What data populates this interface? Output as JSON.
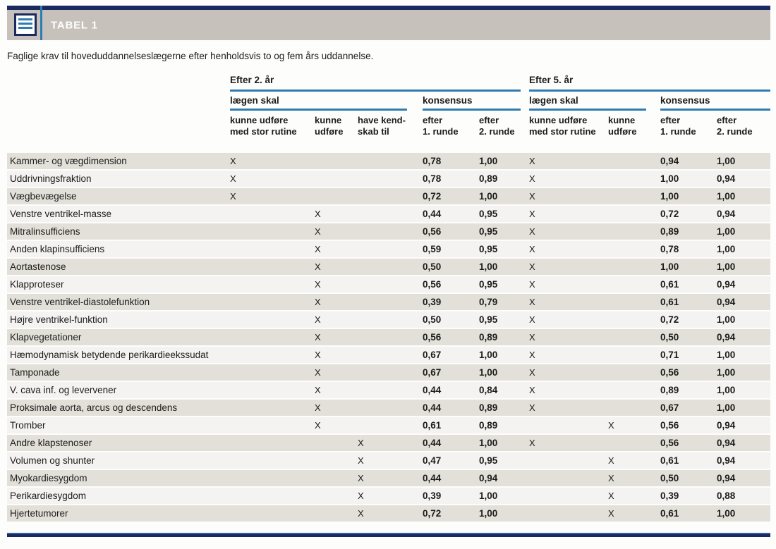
{
  "header": {
    "table_label": "TABEL 1",
    "caption": "Faglige krav til hoveduddannelseslægerne efter henholdsvis to og fem års uddannelse."
  },
  "colors": {
    "navy": "#1b2a5e",
    "blue_line": "#2e7cb2",
    "title_bar_gray": "#c6c2bb",
    "row_dark": "#e3e0da",
    "row_light": "#f4f3f1"
  },
  "table": {
    "sections": [
      {
        "title": "Efter 2. år",
        "groups": [
          "lægen skal",
          "konsensus"
        ],
        "columns": [
          "kunne udføre\nmed stor rutine",
          "kunne\nudføre",
          "have kend-\nskab til",
          "efter\n1. runde",
          "efter\n2. runde"
        ]
      },
      {
        "title": "Efter 5. år",
        "groups": [
          "lægen skal",
          "konsensus"
        ],
        "columns": [
          "kunne udføre\nmed stor rutine",
          "kunne\nudføre",
          "efter\n1. runde",
          "efter\n2. runde"
        ]
      }
    ],
    "rows": [
      [
        "Kammer- og vægdimension",
        "X",
        "",
        "",
        "0,78",
        "1,00",
        "X",
        "",
        "0,94",
        "1,00"
      ],
      [
        "Uddrivningsfraktion",
        "X",
        "",
        "",
        "0,78",
        "0,89",
        "X",
        "",
        "1,00",
        "0,94"
      ],
      [
        "Vægbevægelse",
        "X",
        "",
        "",
        "0,72",
        "1,00",
        "X",
        "",
        "1,00",
        "1,00"
      ],
      [
        "Venstre ventrikel-masse",
        "",
        "X",
        "",
        "0,44",
        "0,95",
        "X",
        "",
        "0,72",
        "0,94"
      ],
      [
        "Mitralinsufficiens",
        "",
        "X",
        "",
        "0,56",
        "0,95",
        "X",
        "",
        "0,89",
        "1,00"
      ],
      [
        "Anden klapinsufficiens",
        "",
        "X",
        "",
        "0,59",
        "0,95",
        "X",
        "",
        "0,78",
        "1,00"
      ],
      [
        "Aortastenose",
        "",
        "X",
        "",
        "0,50",
        "1,00",
        "X",
        "",
        "1,00",
        "1,00"
      ],
      [
        "Klapproteser",
        "",
        "X",
        "",
        "0,56",
        "0,95",
        "X",
        "",
        "0,61",
        "0,94"
      ],
      [
        "Venstre ventrikel-diastolefunktion",
        "",
        "X",
        "",
        "0,39",
        "0,79",
        "X",
        "",
        "0,61",
        "0,94"
      ],
      [
        "Højre ventrikel-funktion",
        "",
        "X",
        "",
        "0,50",
        "0,95",
        "X",
        "",
        "0,72",
        "1,00"
      ],
      [
        "Klapvegetationer",
        "",
        "X",
        "",
        "0,56",
        "0,89",
        "X",
        "",
        "0,50",
        "0,94"
      ],
      [
        "Hæmodynamisk betydende perikardieekssudat",
        "",
        "X",
        "",
        "0,67",
        "1,00",
        "X",
        "",
        "0,71",
        "1,00"
      ],
      [
        "Tamponade",
        "",
        "X",
        "",
        "0,67",
        "1,00",
        "X",
        "",
        "0,56",
        "1,00"
      ],
      [
        "V. cava inf. og levervener",
        "",
        "X",
        "",
        "0,44",
        "0,84",
        "X",
        "",
        "0,89",
        "1,00"
      ],
      [
        "Proksimale aorta, arcus og descendens",
        "",
        "X",
        "",
        "0,44",
        "0,89",
        "X",
        "",
        "0,67",
        "1,00"
      ],
      [
        "Tromber",
        "",
        "X",
        "",
        "0,61",
        "0,89",
        "",
        "X",
        "0,56",
        "0,94"
      ],
      [
        "Andre klapstenoser",
        "",
        "",
        "X",
        "0,44",
        "1,00",
        "X",
        "",
        "0,56",
        "0,94"
      ],
      [
        "Volumen og shunter",
        "",
        "",
        "X",
        "0,47",
        "0,95",
        "",
        "X",
        "0,61",
        "0,94"
      ],
      [
        "Myokardiesygdom",
        "",
        "",
        "X",
        "0,44",
        "0,94",
        "",
        "X",
        "0,50",
        "0,94"
      ],
      [
        "Perikardiesygdom",
        "",
        "",
        "X",
        "0,39",
        "1,00",
        "",
        "X",
        "0,39",
        "0,88"
      ],
      [
        "Hjertetumorer",
        "",
        "",
        "X",
        "0,72",
        "1,00",
        "",
        "X",
        "0,61",
        "1,00"
      ]
    ]
  }
}
